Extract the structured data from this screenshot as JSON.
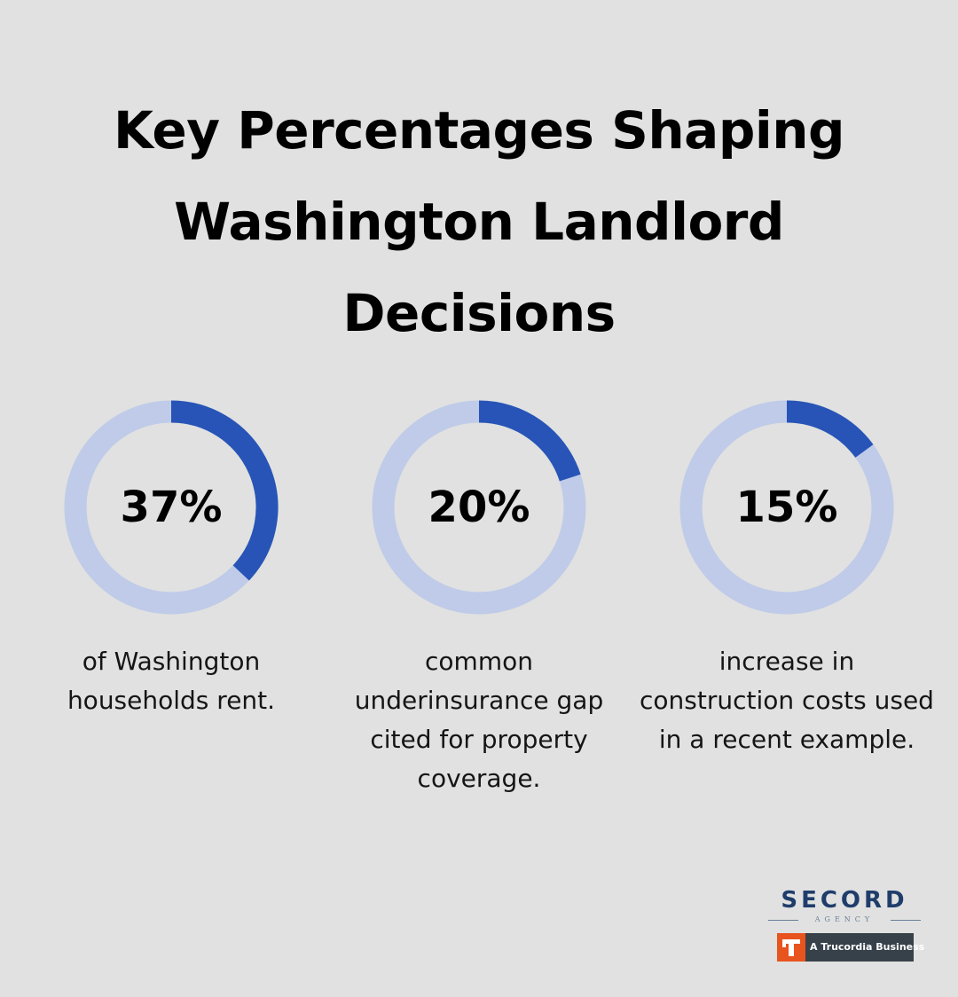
{
  "title": {
    "line1": "Key Percentages Shaping",
    "line2": "Washington Landlord",
    "line3": "Decisions"
  },
  "colors": {
    "background": "#e0e1e0",
    "ring_track": "#bfcbe8",
    "ring_fill": "#2754b6"
  },
  "chart_data": {
    "type": "pie",
    "style": "donut-progress",
    "items": [
      {
        "label": "37%",
        "value": 37,
        "description": "of Washington households rent."
      },
      {
        "label": "20%",
        "value": 20,
        "description": "common underinsurance gap cited for property coverage."
      },
      {
        "label": "15%",
        "value": 15,
        "description": "increase in construction costs used in a recent example."
      }
    ]
  },
  "logo": {
    "name": "SECORD",
    "sub": "AGENCY",
    "badge_text": "A Trucordia Business",
    "badge_mark": "T"
  }
}
